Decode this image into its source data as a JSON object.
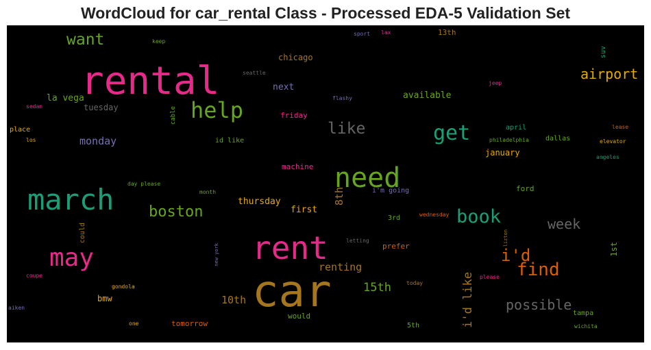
{
  "title": "WordCloud for car_rental Class - Processed EDA-5 Validation Set",
  "colors": {
    "background": "#000000"
  },
  "words": [
    {
      "text": "rental",
      "color": "#e7298a"
    },
    {
      "text": "car",
      "color": "#a6761d"
    },
    {
      "text": "rent",
      "color": "#e7298a"
    },
    {
      "text": "march",
      "color": "#1b9e77"
    },
    {
      "text": "need",
      "color": "#66a61e"
    },
    {
      "text": "may",
      "color": "#e7298a"
    },
    {
      "text": "help",
      "color": "#66a61e"
    },
    {
      "text": "get",
      "color": "#1b9e77"
    },
    {
      "text": "book",
      "color": "#1b9e77"
    },
    {
      "text": "find",
      "color": "#d95f02"
    },
    {
      "text": "i'd",
      "color": "#d95f02"
    },
    {
      "text": "like",
      "color": "#666666"
    },
    {
      "text": "want",
      "color": "#66a61e"
    },
    {
      "text": "boston",
      "color": "#66a61e"
    },
    {
      "text": "week",
      "color": "#666666"
    },
    {
      "text": "airport",
      "color": "#e6ab02"
    },
    {
      "text": "possible",
      "color": "#666666"
    },
    {
      "text": "i'd like",
      "color": "#a6761d"
    },
    {
      "text": "15th",
      "color": "#66a61e"
    },
    {
      "text": "renting",
      "color": "#a6761d"
    },
    {
      "text": "10th",
      "color": "#a6761d"
    },
    {
      "text": "8th",
      "color": "#a6761d"
    },
    {
      "text": "monday",
      "color": "#7570b3"
    },
    {
      "text": "thursday",
      "color": "#e6ab02"
    },
    {
      "text": "first",
      "color": "#e6ab02"
    },
    {
      "text": "la vega",
      "color": "#66a61e"
    },
    {
      "text": "available",
      "color": "#66a61e"
    },
    {
      "text": "next",
      "color": "#7570b3"
    },
    {
      "text": "tuesday",
      "color": "#666666"
    },
    {
      "text": "bmw",
      "color": "#e6ab02"
    },
    {
      "text": "january",
      "color": "#e6ab02"
    },
    {
      "text": "chicago",
      "color": "#a6761d"
    },
    {
      "text": "friday",
      "color": "#e7298a"
    },
    {
      "text": "machine",
      "color": "#e7298a"
    },
    {
      "text": "ford",
      "color": "#66a61e"
    },
    {
      "text": "1st",
      "color": "#66a61e"
    },
    {
      "text": "tomorrow",
      "color": "#d95f02"
    },
    {
      "text": "would",
      "color": "#66a61e"
    },
    {
      "text": "prefer",
      "color": "#d95f02"
    },
    {
      "text": "tampa",
      "color": "#66a61e"
    },
    {
      "text": "dallas",
      "color": "#66a61e"
    },
    {
      "text": "april",
      "color": "#1b9e77"
    },
    {
      "text": "13th",
      "color": "#a6761d"
    },
    {
      "text": "3rd",
      "color": "#66a61e"
    },
    {
      "text": "5th",
      "color": "#66a61e"
    },
    {
      "text": "place",
      "color": "#e6ab02"
    },
    {
      "text": "could",
      "color": "#a6761d"
    },
    {
      "text": "cable",
      "color": "#66a61e"
    },
    {
      "text": "i'm going",
      "color": "#7570b3"
    },
    {
      "text": "id like",
      "color": "#66a61e"
    },
    {
      "text": "suv",
      "color": "#1b9e77"
    },
    {
      "text": "elevator",
      "color": "#e6ab02"
    },
    {
      "text": "philadelphia",
      "color": "#66a61e"
    },
    {
      "text": "lease",
      "color": "#d95f02"
    },
    {
      "text": "angeles",
      "color": "#1b9e77"
    },
    {
      "text": "wichita",
      "color": "#66a61e"
    },
    {
      "text": "jeep",
      "color": "#e7298a"
    },
    {
      "text": "flashy",
      "color": "#7570b3"
    },
    {
      "text": "seattle",
      "color": "#666666"
    },
    {
      "text": "keep",
      "color": "#66a61e"
    },
    {
      "text": "sport",
      "color": "#7570b3"
    },
    {
      "text": "lax",
      "color": "#e7298a"
    },
    {
      "text": "sedan",
      "color": "#e7298a"
    },
    {
      "text": "los",
      "color": "#e6ab02"
    },
    {
      "text": "day please",
      "color": "#66a61e"
    },
    {
      "text": "month",
      "color": "#66a61e"
    },
    {
      "text": "wednesday",
      "color": "#d95f02"
    },
    {
      "text": "lizton",
      "color": "#a6761d"
    },
    {
      "text": "letting",
      "color": "#666666"
    },
    {
      "text": "new york",
      "color": "#7570b3"
    },
    {
      "text": "coupe",
      "color": "#e7298a"
    },
    {
      "text": "gondola",
      "color": "#e6ab02"
    },
    {
      "text": "aiken",
      "color": "#7570b3"
    },
    {
      "text": "one",
      "color": "#e6ab02"
    },
    {
      "text": "today",
      "color": "#a6761d"
    },
    {
      "text": "please",
      "color": "#e7298a"
    }
  ]
}
